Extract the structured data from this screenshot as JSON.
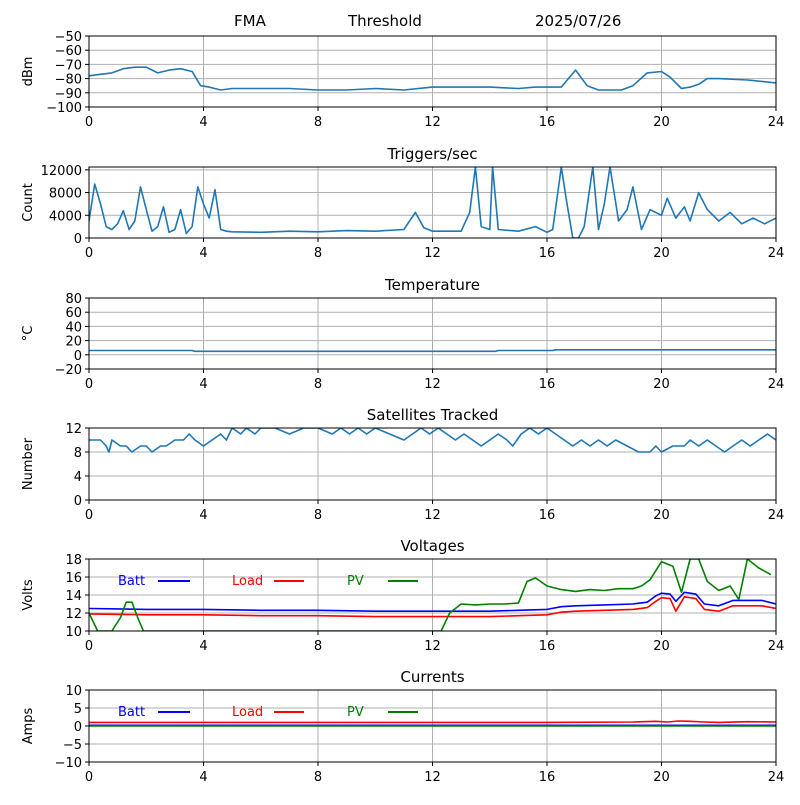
{
  "header": {
    "station": "FMA",
    "mode": "Threshold",
    "date": "2025/07/26"
  },
  "chart_data": [
    {
      "type": "line",
      "title": "",
      "xlabel": "",
      "ylabel": "dBm",
      "xlim": [
        0,
        24
      ],
      "ylim": [
        -100,
        -50
      ],
      "xticks": [
        0,
        4,
        8,
        12,
        16,
        20,
        24
      ],
      "yticks": [
        -100,
        -90,
        -80,
        -70,
        -60,
        -50
      ],
      "grid": true,
      "series": [
        {
          "color": "#1f77b4",
          "x": [
            0,
            0.4,
            0.8,
            1.2,
            1.6,
            2.0,
            2.4,
            2.8,
            3.2,
            3.6,
            3.9,
            4.2,
            4.6,
            5.0,
            6,
            7,
            8,
            9,
            10,
            11,
            12,
            13,
            14,
            15,
            15.6,
            16,
            16.5,
            17.0,
            17.4,
            17.8,
            18.2,
            18.6,
            19.0,
            19.5,
            20.0,
            20.3,
            20.7,
            21.0,
            21.3,
            21.6,
            22,
            23,
            24
          ],
          "y": [
            -78,
            -77,
            -76,
            -73,
            -72,
            -72,
            -76,
            -74,
            -73,
            -75,
            -85,
            -86,
            -88,
            -87,
            -87,
            -87,
            -88,
            -88,
            -87,
            -88,
            -86,
            -86,
            -86,
            -87,
            -86,
            -86,
            -86,
            -74,
            -85,
            -88,
            -88,
            -88,
            -85,
            -76,
            -75,
            -79,
            -87,
            -86,
            -84,
            -80,
            -80,
            -81,
            -83
          ]
        }
      ]
    },
    {
      "type": "line",
      "title": "Triggers/sec",
      "xlabel": "",
      "ylabel": "Count",
      "xlim": [
        0,
        24
      ],
      "ylim": [
        0,
        12500
      ],
      "xticks": [
        0,
        4,
        8,
        12,
        16,
        20,
        24
      ],
      "yticks": [
        0,
        4000,
        8000,
        12000
      ],
      "grid": true,
      "series": [
        {
          "color": "#1f77b4",
          "x": [
            0,
            0.2,
            0.4,
            0.6,
            0.8,
            1.0,
            1.2,
            1.4,
            1.6,
            1.8,
            2.0,
            2.2,
            2.4,
            2.6,
            2.8,
            3.0,
            3.2,
            3.4,
            3.6,
            3.8,
            4.0,
            4.2,
            4.4,
            4.6,
            4.8,
            5,
            6,
            7,
            8,
            9,
            10,
            11,
            11.4,
            11.7,
            12,
            13,
            13.3,
            13.5,
            13.7,
            14.0,
            14.1,
            14.3,
            15,
            15.6,
            16,
            16.2,
            16.5,
            16.7,
            16.9,
            17.1,
            17.3,
            17.6,
            17.8,
            18.0,
            18.2,
            18.5,
            18.8,
            19.0,
            19.3,
            19.6,
            20.0,
            20.2,
            20.5,
            20.8,
            21.0,
            21.3,
            21.6,
            22.0,
            22.4,
            22.8,
            23.2,
            23.6,
            24
          ],
          "y": [
            3000,
            9500,
            6000,
            2000,
            1500,
            2500,
            4800,
            1500,
            3000,
            9000,
            5000,
            1200,
            2000,
            5500,
            1000,
            1500,
            5000,
            800,
            2000,
            9000,
            6000,
            3500,
            8500,
            1500,
            1200,
            1100,
            1000,
            1200,
            1100,
            1300,
            1200,
            1500,
            4500,
            1800,
            1200,
            1200,
            4500,
            12500,
            2000,
            1500,
            12500,
            1500,
            1200,
            2000,
            1000,
            1500,
            12500,
            6000,
            0,
            0,
            2000,
            12500,
            1500,
            6000,
            12500,
            3000,
            5000,
            9000,
            1500,
            5000,
            4000,
            7000,
            3500,
            5500,
            3000,
            8000,
            5000,
            3000,
            4500,
            2500,
            3500,
            2500,
            3500
          ]
        }
      ]
    },
    {
      "type": "line",
      "title": "Temperature",
      "xlabel": "",
      "ylabel": "°C",
      "xlim": [
        0,
        24
      ],
      "ylim": [
        -20,
        80
      ],
      "xticks": [
        0,
        4,
        8,
        12,
        16,
        20,
        24
      ],
      "yticks": [
        -20,
        0,
        20,
        40,
        60,
        80
      ],
      "grid": true,
      "series": [
        {
          "color": "#1f77b4",
          "x": [
            0,
            3.6,
            3.7,
            8,
            12,
            14.2,
            14.3,
            16.2,
            16.3,
            20,
            24
          ],
          "y": [
            6,
            6,
            5,
            5,
            5,
            5,
            6,
            6,
            7,
            7,
            7
          ]
        }
      ]
    },
    {
      "type": "line",
      "title": "Satellites Tracked",
      "xlabel": "",
      "ylabel": "Number",
      "xlim": [
        0,
        24
      ],
      "ylim": [
        0,
        12
      ],
      "xticks": [
        0,
        4,
        8,
        12,
        16,
        20,
        24
      ],
      "yticks": [
        0,
        4,
        8,
        12
      ],
      "grid": true,
      "series": [
        {
          "color": "#1f77b4",
          "x": [
            0,
            0.4,
            0.6,
            0.7,
            0.8,
            1.1,
            1.3,
            1.5,
            1.8,
            2.0,
            2.2,
            2.5,
            2.7,
            3.0,
            3.3,
            3.5,
            3.7,
            4.0,
            4.3,
            4.6,
            4.8,
            5.0,
            5.3,
            5.5,
            5.8,
            6.0,
            6.5,
            7.0,
            7.5,
            8.0,
            8.5,
            8.8,
            9.1,
            9.4,
            9.7,
            10.0,
            10.5,
            11.0,
            11.3,
            11.6,
            11.9,
            12.2,
            12.5,
            12.8,
            13.1,
            13.4,
            13.7,
            14.0,
            14.3,
            14.6,
            14.8,
            15.1,
            15.4,
            15.7,
            16.0,
            16.3,
            16.6,
            16.9,
            17.2,
            17.5,
            17.8,
            18.1,
            18.4,
            18.8,
            19.2,
            19.6,
            19.8,
            20.0,
            20.4,
            20.8,
            21.0,
            21.3,
            21.6,
            21.9,
            22.2,
            22.5,
            22.8,
            23.1,
            23.4,
            23.7,
            24
          ],
          "y": [
            10,
            10,
            9,
            8,
            10,
            9,
            9,
            8,
            9,
            9,
            8,
            9,
            9,
            10,
            10,
            11,
            10,
            9,
            10,
            11,
            10,
            12,
            11,
            12,
            11,
            12,
            12,
            11,
            12,
            12,
            11,
            12,
            11,
            12,
            11,
            12,
            11,
            10,
            11,
            12,
            11,
            12,
            11,
            10,
            11,
            10,
            9,
            10,
            11,
            10,
            9,
            11,
            12,
            11,
            12,
            11,
            10,
            9,
            10,
            9,
            10,
            9,
            10,
            9,
            8,
            8,
            9,
            8,
            9,
            9,
            10,
            9,
            10,
            9,
            8,
            9,
            10,
            9,
            10,
            11,
            10
          ]
        }
      ]
    },
    {
      "type": "line",
      "title": "Voltages",
      "xlabel": "",
      "ylabel": "Volts",
      "xlim": [
        0,
        24
      ],
      "ylim": [
        10,
        18
      ],
      "xticks": [
        0,
        4,
        8,
        12,
        16,
        20,
        24
      ],
      "yticks": [
        10,
        12,
        14,
        16,
        18
      ],
      "grid": true,
      "legend_placement": "top-left",
      "series": [
        {
          "name": "Batt",
          "color": "#0000ff",
          "x": [
            0,
            2,
            4,
            6,
            8,
            10,
            12,
            14,
            15,
            16,
            16.5,
            17,
            18,
            19,
            19.5,
            19.8,
            20,
            20.3,
            20.5,
            20.8,
            21.2,
            21.5,
            22,
            22.5,
            23,
            23.5,
            24
          ],
          "y": [
            12.5,
            12.4,
            12.4,
            12.3,
            12.3,
            12.2,
            12.2,
            12.2,
            12.3,
            12.4,
            12.7,
            12.8,
            12.9,
            13.0,
            13.2,
            13.9,
            14.2,
            14.1,
            13.3,
            14.3,
            14.1,
            13.0,
            12.8,
            13.4,
            13.4,
            13.4,
            13.0
          ]
        },
        {
          "name": "Load",
          "color": "#ff0000",
          "x": [
            0,
            2,
            4,
            6,
            8,
            10,
            12,
            14,
            15,
            16,
            16.5,
            17,
            18,
            19,
            19.5,
            19.8,
            20,
            20.3,
            20.5,
            20.8,
            21.2,
            21.5,
            22,
            22.5,
            23,
            23.5,
            24
          ],
          "y": [
            11.9,
            11.8,
            11.8,
            11.7,
            11.7,
            11.6,
            11.6,
            11.6,
            11.7,
            11.8,
            12.1,
            12.2,
            12.3,
            12.4,
            12.6,
            13.3,
            13.7,
            13.6,
            12.2,
            13.8,
            13.6,
            12.4,
            12.2,
            12.8,
            12.8,
            12.8,
            12.5
          ]
        },
        {
          "name": "PV",
          "color": "#008000",
          "x": [
            0,
            0.3,
            0.8,
            1.1,
            1.3,
            1.5,
            1.7,
            1.9,
            12.3,
            12.6,
            13.0,
            13.5,
            14.0,
            14.5,
            15.0,
            15.3,
            15.6,
            16.0,
            16.5,
            17.0,
            17.5,
            18.0,
            18.5,
            19.0,
            19.3,
            19.6,
            20.0,
            20.4,
            20.7,
            21.0,
            21.3,
            21.6,
            22.0,
            22.4,
            22.7,
            23.0,
            23.4,
            23.8
          ],
          "y": [
            12.0,
            10.0,
            10.0,
            11.5,
            13.2,
            13.2,
            11.5,
            10.0,
            10.0,
            12.0,
            13.0,
            12.9,
            13.0,
            13.0,
            13.1,
            15.5,
            15.9,
            15.0,
            14.6,
            14.4,
            14.6,
            14.5,
            14.7,
            14.7,
            15.0,
            15.7,
            17.7,
            17.2,
            14.3,
            18.0,
            18.0,
            15.5,
            14.5,
            15.0,
            13.5,
            18.0,
            17.0,
            16.3
          ]
        }
      ]
    },
    {
      "type": "line",
      "title": "Currents",
      "xlabel": "",
      "ylabel": "Amps",
      "xlim": [
        0,
        24
      ],
      "ylim": [
        -10,
        10
      ],
      "xticks": [
        0,
        4,
        8,
        12,
        16,
        20,
        24
      ],
      "yticks": [
        -10,
        -5,
        0,
        5,
        10
      ],
      "grid": true,
      "legend_placement": "top-left",
      "series": [
        {
          "name": "Batt",
          "color": "#0000ff",
          "x": [
            0,
            24
          ],
          "y": [
            0.2,
            0.2
          ]
        },
        {
          "name": "Load",
          "color": "#ff0000",
          "x": [
            0,
            4,
            8,
            12,
            16,
            19,
            19.8,
            20.2,
            20.6,
            21.0,
            21.5,
            22,
            23,
            24
          ],
          "y": [
            1.0,
            1.0,
            1.0,
            1.0,
            1.0,
            1.1,
            1.3,
            1.1,
            1.4,
            1.3,
            1.1,
            1.0,
            1.2,
            1.1
          ]
        },
        {
          "name": "PV",
          "color": "#008000",
          "x": [
            0,
            24
          ],
          "y": [
            0.0,
            0.0
          ]
        }
      ]
    }
  ]
}
